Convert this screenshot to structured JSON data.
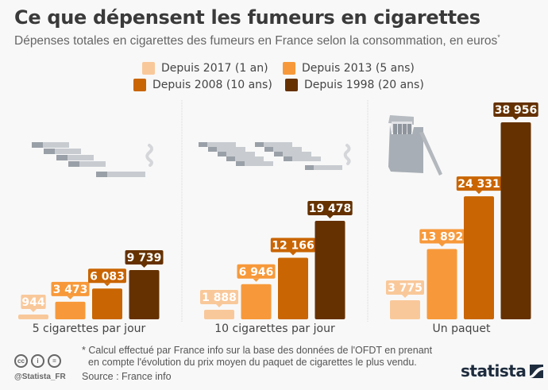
{
  "header": {
    "title": "Ce que dépensent les fumeurs en cigarettes",
    "subtitle": "Dépenses totales en cigarettes des fumeurs en France selon la consommation, en euros",
    "subtitle_marker": "*"
  },
  "chart_data": {
    "type": "bar",
    "title": "Ce que dépensent les fumeurs en cigarettes",
    "subtitle": "Dépenses totales en cigarettes des fumeurs en France selon la consommation, en euros*",
    "xlabel": "",
    "ylabel": "",
    "ylim": [
      0,
      38956
    ],
    "grid": false,
    "legend_position": "top-center",
    "categories": [
      "5 cigarettes par jour",
      "10 cigarettes par jour",
      "Un paquet"
    ],
    "series": [
      {
        "name": "Depuis 2017 (1 an)",
        "color": "#f9c89a",
        "values": [
          944,
          1888,
          3775
        ],
        "labels": [
          "944",
          "1 888",
          "3 775"
        ]
      },
      {
        "name": "Depuis 2013 (5 ans)",
        "color": "#f7993a",
        "values": [
          3473,
          6946,
          13892
        ],
        "labels": [
          "3 473",
          "6 946",
          "13 892"
        ]
      },
      {
        "name": "Depuis 2008 (10 ans)",
        "color": "#c96502",
        "values": [
          6083,
          12166,
          24331
        ],
        "labels": [
          "6 083",
          "12 166",
          "24 331"
        ]
      },
      {
        "name": "Depuis 1998 (20 ans)",
        "color": "#653100",
        "values": [
          9739,
          19478,
          38956
        ],
        "labels": [
          "9 739",
          "19 478",
          "38 956"
        ]
      }
    ]
  },
  "icons": [
    "cigarettes-5-icon",
    "cigarettes-10-icon",
    "cigarette-pack-icon",
    "smoke-icon"
  ],
  "footer": {
    "note_line1": "* Calcul effectué par France info sur la base des données de l'OFDT en prenant",
    "note_line2": "en compte l'évolution du prix moyen du paquet de cigarettes le plus vendu.",
    "source": "Source : France info",
    "handle": "@Statista_FR",
    "brand": "statista",
    "cc_labels": [
      "cc",
      "i",
      "="
    ]
  }
}
